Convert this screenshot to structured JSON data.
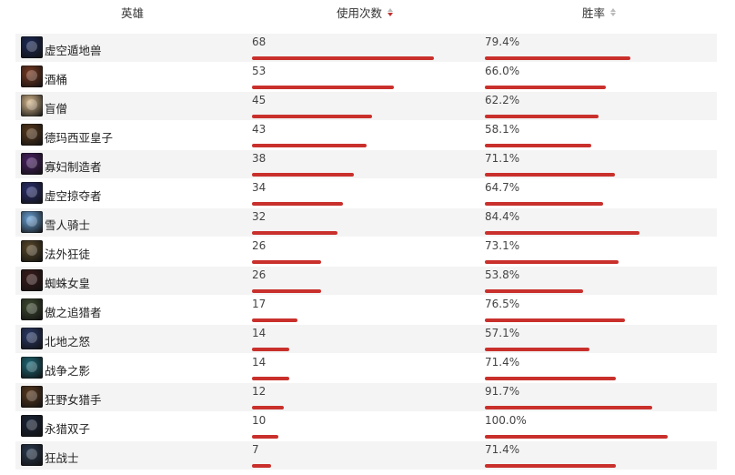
{
  "header": {
    "hero_label": "英雄",
    "count_label": "使用次数",
    "winrate_label": "胜率"
  },
  "rows": [
    {
      "name": "虚空遁地兽",
      "count": "68",
      "count_value": 68,
      "winrate": "79.4%",
      "winrate_value": 79.4,
      "avatar_color": "#1c2a58"
    },
    {
      "name": "酒桶",
      "count": "53",
      "count_value": 53,
      "winrate": "66.0%",
      "winrate_value": 66.0,
      "avatar_color": "#7a3a22"
    },
    {
      "name": "盲僧",
      "count": "45",
      "count_value": 45,
      "winrate": "62.2%",
      "winrate_value": 62.2,
      "avatar_color": "#d7b98e"
    },
    {
      "name": "德玛西亚皇子",
      "count": "43",
      "count_value": 43,
      "winrate": "58.1%",
      "winrate_value": 58.1,
      "avatar_color": "#5a3a1c"
    },
    {
      "name": "寡妇制造者",
      "count": "38",
      "count_value": 38,
      "winrate": "71.1%",
      "winrate_value": 71.1,
      "avatar_color": "#4a2066"
    },
    {
      "name": "虚空掠夺者",
      "count": "34",
      "count_value": 34,
      "winrate": "64.7%",
      "winrate_value": 64.7,
      "avatar_color": "#2a2f70"
    },
    {
      "name": "雪人骑士",
      "count": "32",
      "count_value": 32,
      "winrate": "84.4%",
      "winrate_value": 84.4,
      "avatar_color": "#6aa2d8"
    },
    {
      "name": "法外狂徒",
      "count": "26",
      "count_value": 26,
      "winrate": "73.1%",
      "winrate_value": 73.1,
      "avatar_color": "#5a4a2a"
    },
    {
      "name": "蜘蛛女皇",
      "count": "26",
      "count_value": 26,
      "winrate": "53.8%",
      "winrate_value": 53.8,
      "avatar_color": "#3a1a1a"
    },
    {
      "name": "傲之追猎者",
      "count": "17",
      "count_value": 17,
      "winrate": "76.5%",
      "winrate_value": 76.5,
      "avatar_color": "#3e4a30"
    },
    {
      "name": "北地之怒",
      "count": "14",
      "count_value": 14,
      "winrate": "57.1%",
      "winrate_value": 57.1,
      "avatar_color": "#2a3a6a"
    },
    {
      "name": "战争之影",
      "count": "14",
      "count_value": 14,
      "winrate": "71.4%",
      "winrate_value": 71.4,
      "avatar_color": "#1e6a78"
    },
    {
      "name": "狂野女猎手",
      "count": "12",
      "count_value": 12,
      "winrate": "91.7%",
      "winrate_value": 91.7,
      "avatar_color": "#5a3a20"
    },
    {
      "name": "永猎双子",
      "count": "10",
      "count_value": 10,
      "winrate": "100.0%",
      "winrate_value": 100.0,
      "avatar_color": "#1a2438"
    },
    {
      "name": "狂战士",
      "count": "7",
      "count_value": 7,
      "winrate": "71.4%",
      "winrate_value": 71.4,
      "avatar_color": "#2a3a50"
    }
  ],
  "colors": {
    "bar": "#c9302c",
    "row_alt": "#f4f4f4",
    "sort_active": "#c0302e"
  }
}
